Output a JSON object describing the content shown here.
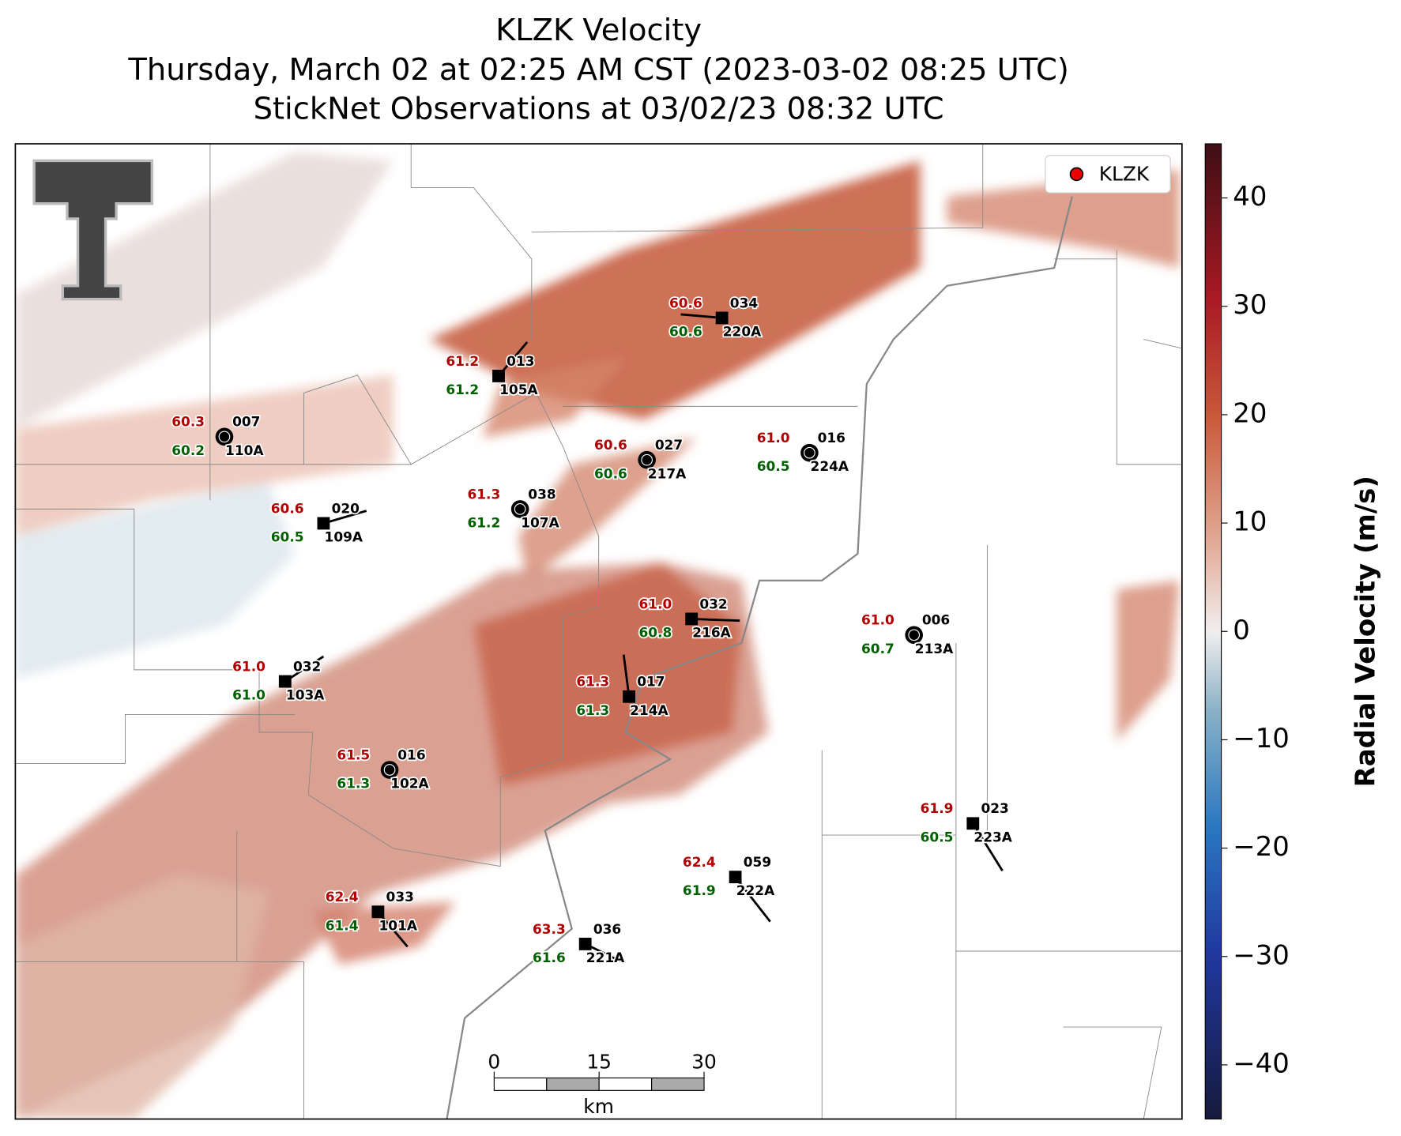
{
  "title": [
    "KLZK Velocity",
    "Thursday, March 02 at 02:25 AM CST (2023-03-02 08:25 UTC)",
    "StickNet Observations at 03/02/23 08:32 UTC"
  ],
  "legend": "KLZK",
  "colorbar": {
    "label": "Radial Velocity (m/s)",
    "lim": [
      -45,
      45
    ],
    "ticks": [
      {
        "value": -40,
        "label": "−40"
      },
      {
        "value": -30,
        "label": "−30"
      },
      {
        "value": -20,
        "label": "−20"
      },
      {
        "value": -10,
        "label": "−10"
      },
      0,
      10,
      20,
      30,
      40
    ]
  },
  "scale_bar": {
    "ticks": [
      0,
      15,
      30
    ],
    "unit": "km"
  },
  "stations": [
    {
      "temperature": "60.6",
      "dewpoint": "60.6",
      "code": "034",
      "id": "220A"
    },
    {
      "temperature": "61.2",
      "dewpoint": "61.2",
      "code": "013",
      "id": "105A"
    },
    {
      "temperature": "60.3",
      "dewpoint": "60.2",
      "code": "007",
      "id": "110A"
    },
    {
      "temperature": "60.6",
      "dewpoint": "60.6",
      "code": "027",
      "id": "217A"
    },
    {
      "temperature": "61.0",
      "dewpoint": "60.5",
      "code": "016",
      "id": "224A"
    },
    {
      "temperature": "61.3",
      "dewpoint": "61.2",
      "code": "038",
      "id": "107A"
    },
    {
      "temperature": "60.6",
      "dewpoint": "60.5",
      "code": "020",
      "id": "109A"
    },
    {
      "temperature": "61.0",
      "dewpoint": "60.8",
      "code": "032",
      "id": "216A"
    },
    {
      "temperature": "61.0",
      "dewpoint": "60.7",
      "code": "006",
      "id": "213A"
    },
    {
      "temperature": "61.0",
      "dewpoint": "61.0",
      "code": "032",
      "id": "103A"
    },
    {
      "temperature": "61.3",
      "dewpoint": "61.3",
      "code": "017",
      "id": "214A"
    },
    {
      "temperature": "61.5",
      "dewpoint": "61.3",
      "code": "016",
      "id": "102A"
    },
    {
      "temperature": "61.9",
      "dewpoint": "60.5",
      "code": "023",
      "id": "223A"
    },
    {
      "temperature": "62.4",
      "dewpoint": "61.9",
      "code": "059",
      "id": "222A"
    },
    {
      "temperature": "62.4",
      "dewpoint": "61.4",
      "code": "033",
      "id": "101A"
    },
    {
      "temperature": "63.3",
      "dewpoint": "61.6",
      "code": "036",
      "id": "221A"
    }
  ]
}
